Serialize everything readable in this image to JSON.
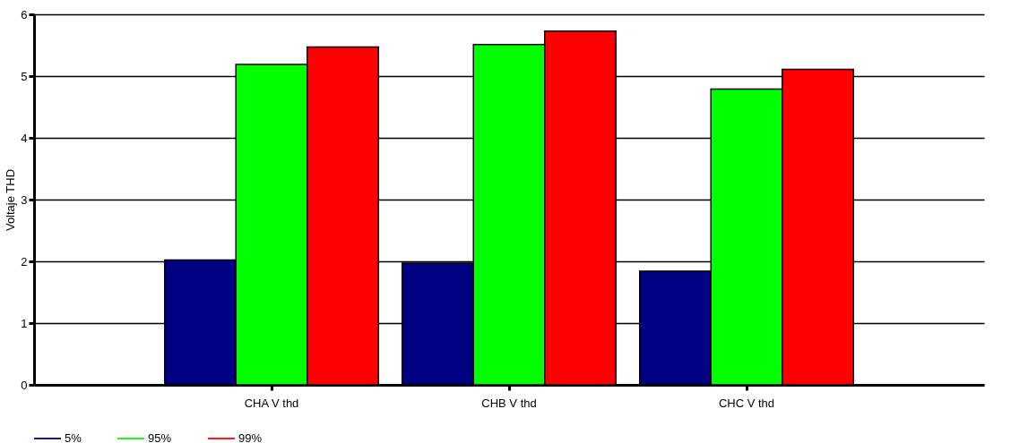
{
  "chart_data": {
    "type": "bar",
    "ylabel": "Voltaje THD",
    "categories": [
      "CHA V thd",
      "CHB V thd",
      "CHC V thd"
    ],
    "series": [
      {
        "name": "5%",
        "color": "#000080",
        "values": [
          2.02,
          1.97,
          1.84
        ]
      },
      {
        "name": "95%",
        "color": "#00ff00",
        "values": [
          5.19,
          5.51,
          4.79
        ]
      },
      {
        "name": "99%",
        "color": "#ff0000",
        "values": [
          5.47,
          5.73,
          5.11
        ]
      }
    ],
    "ylim": [
      0,
      6
    ],
    "yticks": [
      0,
      1,
      2,
      3,
      4,
      5,
      6
    ],
    "grid": "y",
    "legend": "bottom"
  }
}
